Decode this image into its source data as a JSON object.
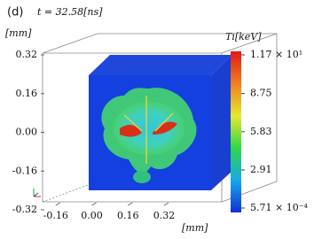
{
  "chart_data": {
    "type": "volume",
    "title": "(d)",
    "subtitle": "t = 32.58[ns]",
    "ylabel": "[mm]",
    "xlabel": "[mm]",
    "ylim": [
      -0.32,
      0.32
    ],
    "yticks": [
      0.32,
      0.16,
      {
        "value": 0,
        "label": "0.00"
      },
      -0.16,
      -0.32
    ],
    "xlim": [
      -0.32,
      0.32
    ],
    "xticks": [
      -0.16,
      {
        "value": 0,
        "label": "0.00"
      },
      0.16,
      0.32
    ],
    "colorbar": {
      "label": "Ti[keV]",
      "lim": [
        0.000571,
        11.7
      ],
      "ticks": [
        {
          "value": 11.7,
          "label": "1.17 × 10¹"
        },
        8.75,
        5.83,
        2.91,
        {
          "value": 0.000571,
          "label": "5.71 × 10⁻⁴"
        }
      ],
      "colors": [
        "#1030d8",
        "#18a8e8",
        "#30d848",
        "#e8e830",
        "#f08020",
        "#e01818"
      ]
    }
  }
}
